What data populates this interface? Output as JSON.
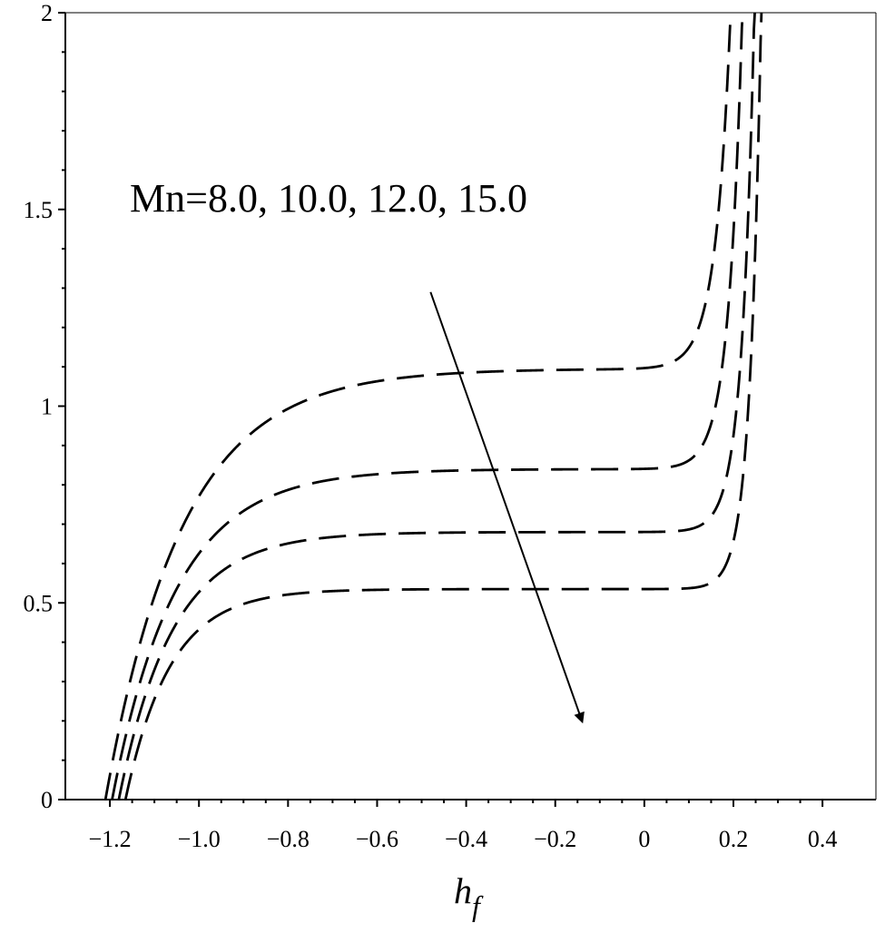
{
  "chart_data": {
    "type": "line",
    "title": "",
    "xlabel": "h",
    "xlabel_subscript": "f",
    "ylabel": "",
    "xlim": [
      -1.3,
      0.52
    ],
    "ylim": [
      0,
      2
    ],
    "x_ticks": [
      -1.2,
      -1.0,
      -0.8,
      -0.6,
      -0.4,
      -0.2,
      0,
      0.2,
      0.4
    ],
    "x_tick_labels": [
      "−1.2",
      "−1.0",
      "−0.8",
      "−0.6",
      "−0.4",
      "−0.2",
      "0",
      "0.2",
      "0.4"
    ],
    "y_ticks": [
      0,
      0.5,
      1,
      1.5,
      2
    ],
    "y_tick_labels": [
      "0",
      "0.5",
      "1",
      "1.5",
      "2"
    ],
    "grid": false,
    "line_style": "dashed",
    "line_color": "#000000",
    "annotation": {
      "text": "Mn=8.0, 10.0, 12.0, 15.0",
      "arrow_from": [
        -0.48,
        1.29
      ],
      "arrow_to": [
        -0.14,
        0.2
      ],
      "arrow_direction": "increasing Mn"
    },
    "series": [
      {
        "x0": -1.21,
        "plateau": 1.095,
        "k": 5.8,
        "rise": 0.18,
        "rise_k": 30
      },
      {
        "x0": -1.195,
        "plateau": 0.84,
        "k": 7.0,
        "rise": 0.2,
        "rise_k": 33
      },
      {
        "x0": -1.18,
        "plateau": 0.68,
        "k": 8.3,
        "rise": 0.225,
        "rise_k": 36
      },
      {
        "x0": -1.165,
        "plateau": 0.535,
        "k": 10.0,
        "rise": 0.24,
        "rise_k": 40
      }
    ]
  }
}
